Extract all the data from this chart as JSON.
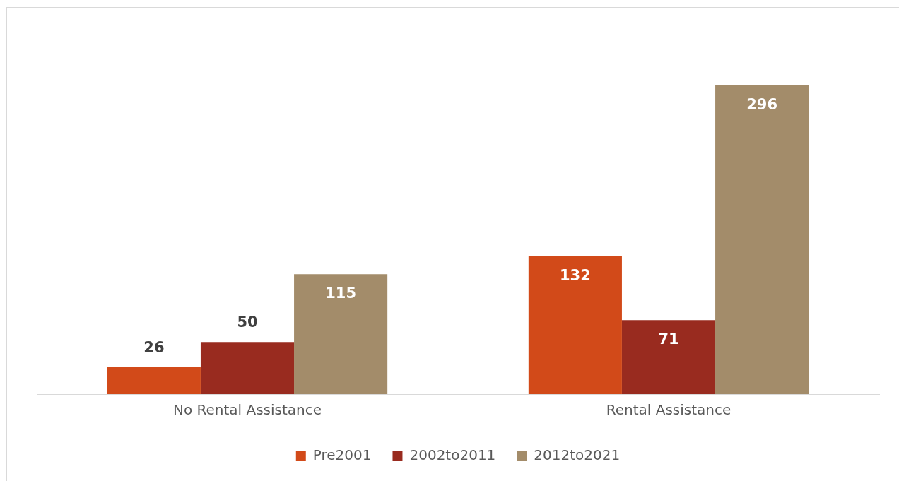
{
  "chart_data": {
    "type": "bar",
    "categories": [
      "No Rental Assistance",
      "Rental Assistance"
    ],
    "series": [
      {
        "name": "Pre2001",
        "color": "#d24a19",
        "values": [
          26,
          132
        ]
      },
      {
        "name": "2002to2011",
        "color": "#992b1f",
        "values": [
          50,
          71
        ]
      },
      {
        "name": "2012to2021",
        "color": "#a38c6a",
        "values": [
          115,
          296
        ]
      }
    ],
    "data_labels": true,
    "legend": "bottom"
  }
}
